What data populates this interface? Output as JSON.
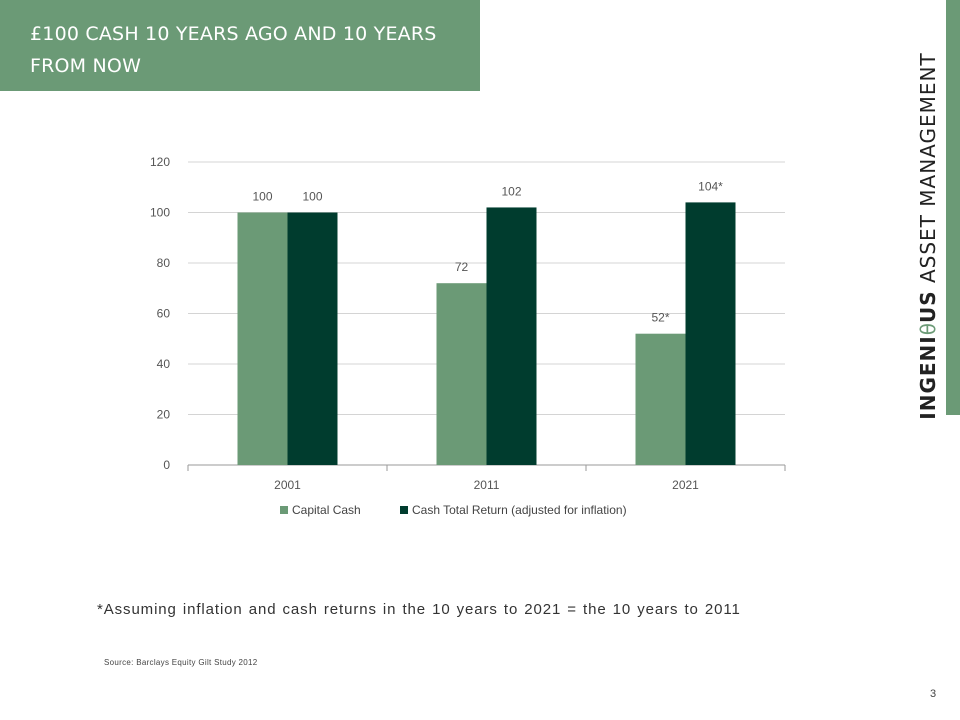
{
  "slide": {
    "title": "£100 CASH 10 YEARS AGO AND 10 YEARS FROM NOW",
    "brand_bold": "INGENI",
    "brand_theta": "θ",
    "brand_bold2": "US",
    "brand_rest": " ASSET MANAGEMENT",
    "footnote": "*Assuming inflation and cash returns in the 10 years to 2021 = the 10 years to 2011",
    "source": "Source: Barclays Equity Gilt Study 2012",
    "page_number": "3",
    "accent_color": "#6b9a76"
  },
  "chart_data": {
    "type": "bar",
    "categories": [
      "2001",
      "2011",
      "2021"
    ],
    "series": [
      {
        "name": "Capital Cash",
        "values": [
          100,
          72,
          52
        ],
        "labels": [
          "100",
          "72",
          "52*"
        ],
        "color": "#6b9a76"
      },
      {
        "name": "Cash Total Return (adjusted for inflation)",
        "values": [
          100,
          102,
          104
        ],
        "labels": [
          "100",
          "102",
          "104*"
        ],
        "color": "#003c2e"
      }
    ],
    "ylim": [
      0,
      120
    ],
    "yticks": [
      0,
      20,
      40,
      60,
      80,
      100,
      120
    ],
    "grid": true,
    "legend": "bottom"
  }
}
